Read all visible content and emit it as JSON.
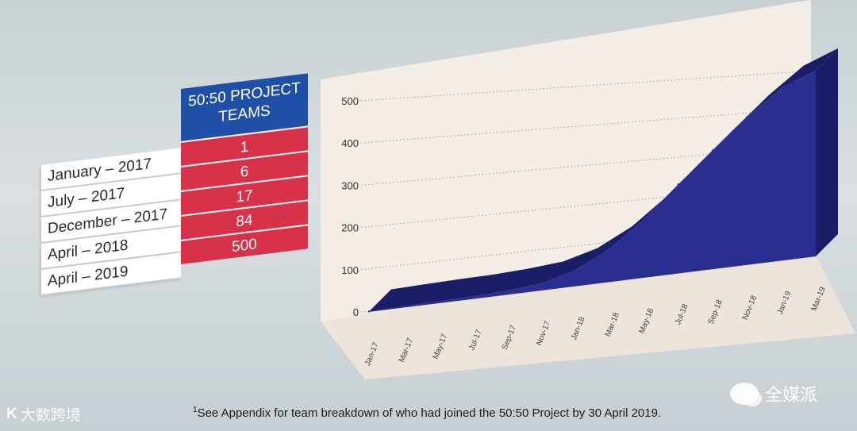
{
  "table": {
    "header": [
      "50:50 PROJECT",
      "TEAMS"
    ],
    "rows": [
      {
        "label": "January – 2017",
        "value": "1"
      },
      {
        "label": "July – 2017",
        "value": "6"
      },
      {
        "label": "December – 2017",
        "value": "17"
      },
      {
        "label": "April – 2018",
        "value": "84"
      },
      {
        "label": "April – 2019",
        "value": "500"
      }
    ]
  },
  "chart_data": {
    "type": "area",
    "title": "",
    "xlabel": "",
    "ylabel": "",
    "x": [
      "Jan-17",
      "Mar-17",
      "May-17",
      "Jul-17",
      "Sep-17",
      "Nov-17",
      "Jan-18",
      "Mar-18",
      "May-18",
      "Jul-18",
      "Sep-18",
      "Nov-18",
      "Jan-19",
      "Mar-19"
    ],
    "series": [
      {
        "values": [
          1,
          3,
          5,
          6,
          10,
          17,
          40,
          84,
          150,
          230,
          310,
          390,
          460,
          500
        ]
      }
    ],
    "yticks": [
      0,
      100,
      200,
      300,
      400,
      500
    ],
    "ylim": [
      0,
      500
    ],
    "grid": true,
    "colors": {
      "area": "#2a2f8f",
      "area_dark": "#1a1e66",
      "panel": "#f4ede6"
    }
  },
  "footnote": {
    "marker": "1",
    "text": "See Appendix for team breakdown of who had joined the 50:50 Project by 30 April 2019."
  },
  "watermarks": {
    "left": "大数跨境",
    "left_logo": "K",
    "right": "全媒派"
  }
}
